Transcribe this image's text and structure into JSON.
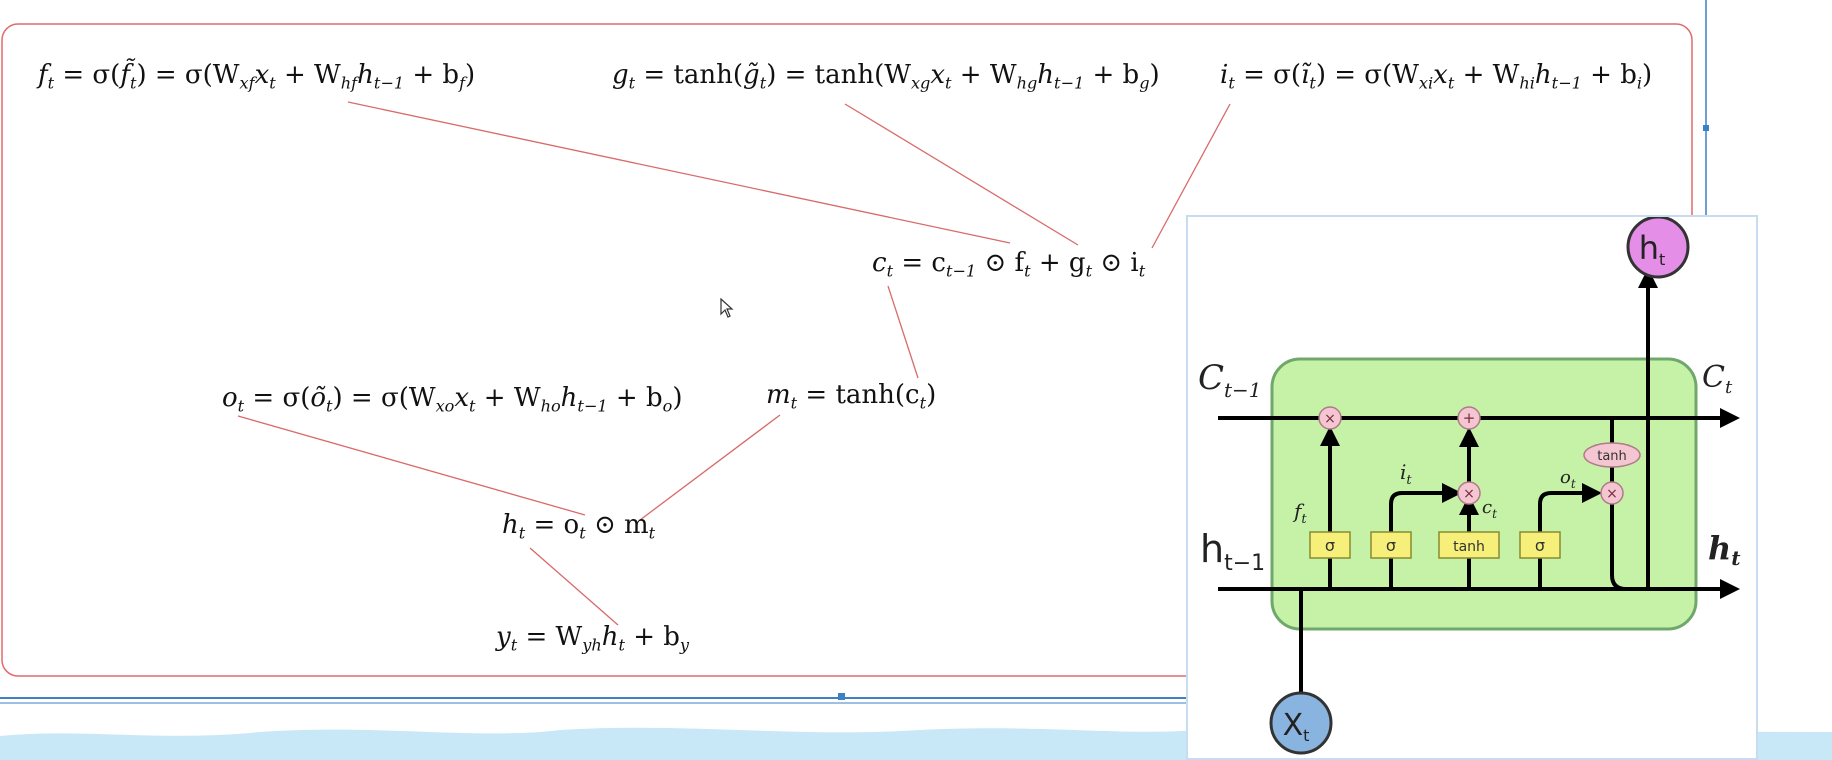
{
  "equations": {
    "forget_gate": {
      "lhs_var": "f",
      "lhs_sub": "t",
      "a": "= σ(",
      "fvar": "f̃",
      "fsub": "t",
      "b": ") = σ(W",
      "w1sub": "xf",
      "c": "x",
      "csub": "t",
      "d": " + W",
      "w2sub": "hf",
      "e": "h",
      "esub": "t−1",
      "f": " + b",
      "bsub": "f",
      "g": ")"
    },
    "cell_candidate": {
      "lhs_var": "g",
      "lhs_sub": "t",
      "a": "= tanh(",
      "gvar": "g̃",
      "gsub": "t",
      "b": ") = tanh(W",
      "w1sub": "xg",
      "c": "x",
      "csub": "t",
      "d": " + W",
      "w2sub": "hg",
      "e": "h",
      "esub": "t−1",
      "f": " + b",
      "bsub": "g",
      "g": ")"
    },
    "input_gate": {
      "lhs_var": "i",
      "lhs_sub": "t",
      "a": "= σ(",
      "ivar": "ĩ",
      "isub": "t",
      "b": ") = σ(W",
      "w1sub": "xi",
      "c": "x",
      "csub": "t",
      "d": " + W",
      "w2sub": "hi",
      "e": "h",
      "esub": "t−1",
      "f": " + b",
      "bsub": "i",
      "g": ")"
    },
    "cell_state": {
      "lhs_var": "c",
      "lhs_sub": "t",
      "a": "= c",
      "asub": "t−1",
      "b": " ⊙ f",
      "bsub": "t",
      "c": " + g",
      "csub": "t",
      "d": " ⊙ i",
      "dsub": "t"
    },
    "output_gate": {
      "lhs_var": "o",
      "lhs_sub": "t",
      "a": "= σ(",
      "ovar": "õ",
      "osub": "t",
      "b": ") = σ(W",
      "w1sub": "xo",
      "c": "x",
      "csub": "t",
      "d": " + W",
      "w2sub": "ho",
      "e": "h",
      "esub": "t−1",
      "f": " + b",
      "bsub": "o",
      "g": ")"
    },
    "memory": {
      "lhs_var": "m",
      "lhs_sub": "t",
      "a": "= tanh(c",
      "asub": "t",
      "b": ")"
    },
    "hidden": {
      "lhs_var": "h",
      "lhs_sub": "t",
      "a": "= o",
      "asub": "t",
      "b": " ⊙ m",
      "bsub": "t"
    },
    "output": {
      "lhs_var": "y",
      "lhs_sub": "t",
      "a": "= W",
      "asub": "yh",
      "b": "h",
      "bsub": "t",
      "c": " + b",
      "csub": "y"
    }
  },
  "lstm_diagram": {
    "h_out_node": {
      "main": "h",
      "sub": "t"
    },
    "x_in_node": {
      "main": "X",
      "sub": "t"
    },
    "c_prev_label": {
      "main": "C",
      "sub": "t−1"
    },
    "c_next_label": {
      "main": "C",
      "sub": "t"
    },
    "h_prev_label": {
      "main": "h",
      "sub": "t−1"
    },
    "h_next_label": {
      "main": "h",
      "sub": "t"
    },
    "gate_labels": {
      "f": "f",
      "f_sub": "t",
      "i": "i",
      "i_sub": "t",
      "c": "c",
      "c_sub": "t",
      "o": "o",
      "o_sub": "t"
    },
    "boxes": [
      "σ",
      "σ",
      "tanh",
      "σ"
    ],
    "tanh_oval": "tanh",
    "mul_symbol": "×",
    "add_symbol": "+",
    "colors": {
      "cell_fill": "#c6f2a8",
      "cell_border": "#6fa86a",
      "box_fill": "#f6f07a",
      "op_fill": "#f3c6d2",
      "h_node_fill": "#e58ee8",
      "x_node_fill": "#8ab4e0"
    }
  },
  "colors": {
    "frame": "#e26a6a",
    "connector": "#d96a6a",
    "ribbon": "#c9e8f7",
    "blue_line": "#3f7fc4"
  }
}
